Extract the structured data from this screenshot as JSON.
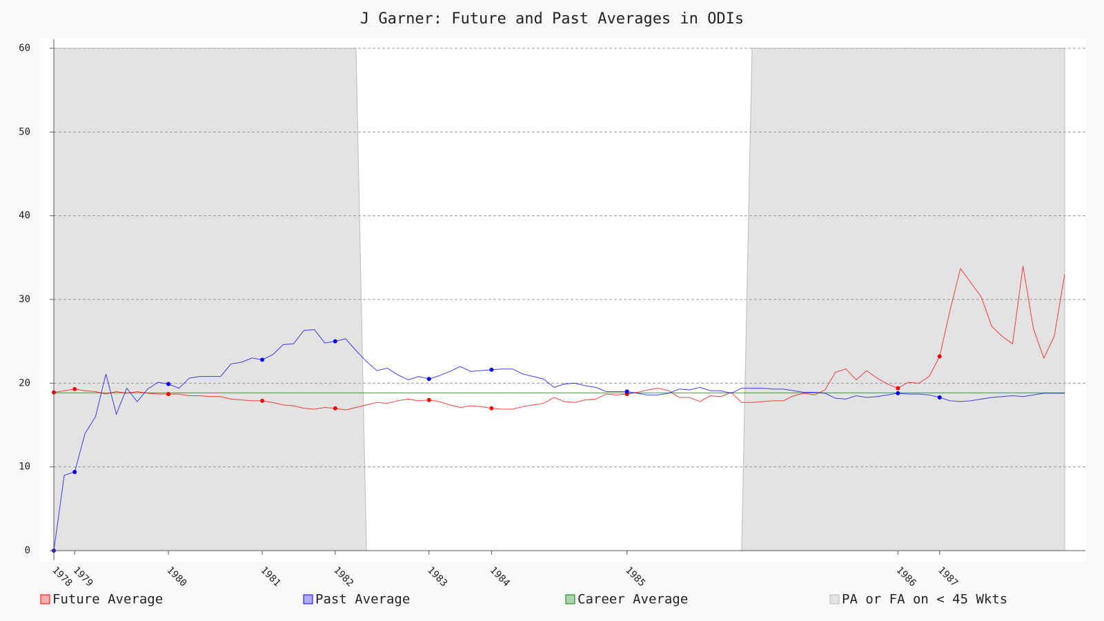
{
  "chart_data": {
    "type": "line",
    "title": "J Garner: Future and Past Averages in ODIs",
    "x": [
      0,
      1,
      2,
      3,
      4,
      5,
      6,
      7,
      8,
      9,
      10,
      11,
      12,
      13,
      14,
      15,
      16,
      17,
      18,
      19,
      20,
      21,
      22,
      23,
      24,
      25,
      26,
      27,
      28,
      29,
      30,
      31,
      32,
      33,
      34,
      35,
      36,
      37,
      38,
      39,
      40,
      41,
      42,
      43,
      44,
      45,
      46,
      47,
      48,
      49,
      50,
      51,
      52,
      53,
      54,
      55,
      56,
      57,
      58,
      59,
      60,
      61,
      62,
      63,
      64,
      65,
      66,
      67,
      68,
      69,
      70,
      71,
      72,
      73,
      74,
      75,
      76,
      77,
      78,
      79,
      80,
      81,
      82,
      83,
      84,
      85,
      86,
      87,
      88,
      89,
      90,
      91,
      92,
      93,
      94,
      95,
      96,
      97
    ],
    "xlim": [
      0,
      97
    ],
    "xticks": [
      {
        "value": 0,
        "label": "1978"
      },
      {
        "value": 2,
        "label": "1979"
      },
      {
        "value": 11,
        "label": "1980"
      },
      {
        "value": 20,
        "label": "1981"
      },
      {
        "value": 27,
        "label": "1982"
      },
      {
        "value": 36,
        "label": "1983"
      },
      {
        "value": 42,
        "label": "1984"
      },
      {
        "value": 55,
        "label": "1985"
      },
      {
        "value": 81,
        "label": "1986"
      },
      {
        "value": 85,
        "label": "1987"
      }
    ],
    "ylim": [
      0,
      60
    ],
    "yticks": [
      0,
      10,
      20,
      30,
      40,
      50,
      60
    ],
    "grid": true,
    "series": [
      {
        "name": "PA or FA on < 45 Wkts",
        "type": "area",
        "color": "#bbbbbb",
        "values": [
          60,
          60,
          60,
          60,
          60,
          60,
          60,
          60,
          60,
          60,
          60,
          60,
          60,
          60,
          60,
          60,
          60,
          60,
          60,
          60,
          60,
          60,
          60,
          60,
          60,
          60,
          60,
          60,
          60,
          60,
          0,
          0,
          0,
          0,
          0,
          0,
          0,
          0,
          0,
          0,
          0,
          0,
          0,
          0,
          0,
          0,
          0,
          0,
          0,
          0,
          0,
          0,
          0,
          0,
          0,
          0,
          0,
          0,
          0,
          0,
          0,
          0,
          0,
          0,
          0,
          0,
          0,
          60,
          60,
          60,
          60,
          60,
          60,
          60,
          60,
          60,
          60,
          60,
          60,
          60,
          60,
          60,
          60,
          60,
          60,
          60,
          60,
          60,
          60,
          60,
          60,
          60,
          60,
          60,
          60,
          60,
          60,
          60
        ]
      },
      {
        "name": "Career Average",
        "type": "line",
        "color": "#008000",
        "values": [
          18.84,
          18.84,
          18.84,
          18.84,
          18.84,
          18.84,
          18.84,
          18.84,
          18.84,
          18.84,
          18.84,
          18.84,
          18.84,
          18.84,
          18.84,
          18.84,
          18.84,
          18.84,
          18.84,
          18.84,
          18.84,
          18.84,
          18.84,
          18.84,
          18.84,
          18.84,
          18.84,
          18.84,
          18.84,
          18.84,
          18.84,
          18.84,
          18.84,
          18.84,
          18.84,
          18.84,
          18.84,
          18.84,
          18.84,
          18.84,
          18.84,
          18.84,
          18.84,
          18.84,
          18.84,
          18.84,
          18.84,
          18.84,
          18.84,
          18.84,
          18.84,
          18.84,
          18.84,
          18.84,
          18.84,
          18.84,
          18.84,
          18.84,
          18.84,
          18.84,
          18.84,
          18.84,
          18.84,
          18.84,
          18.84,
          18.84,
          18.84,
          18.84,
          18.84,
          18.84,
          18.84,
          18.84,
          18.84,
          18.84,
          18.84,
          18.84,
          18.84,
          18.84,
          18.84,
          18.84,
          18.84,
          18.84,
          18.84,
          18.84,
          18.84,
          18.84,
          18.84,
          18.84,
          18.84,
          18.84,
          18.84,
          18.84,
          18.84,
          18.84,
          18.84,
          18.84,
          18.84,
          18.84
        ]
      },
      {
        "name": "Future Average",
        "type": "line",
        "color": "#ff0000",
        "values": [
          18.9,
          19.1,
          19.3,
          19.1,
          19.0,
          18.7,
          19.0,
          18.8,
          19.0,
          18.8,
          18.7,
          18.7,
          18.7,
          18.5,
          18.5,
          18.4,
          18.4,
          18.1,
          18.0,
          17.9,
          17.9,
          17.7,
          17.4,
          17.3,
          17.0,
          16.9,
          17.1,
          17.0,
          16.8,
          17.1,
          17.4,
          17.7,
          17.6,
          17.9,
          18.1,
          17.9,
          18.0,
          17.8,
          17.4,
          17.1,
          17.3,
          17.2,
          17.0,
          16.9,
          16.9,
          17.2,
          17.4,
          17.6,
          18.3,
          17.8,
          17.7,
          18.0,
          18.1,
          18.7,
          18.6,
          18.7,
          18.9,
          19.2,
          19.4,
          19.1,
          18.3,
          18.3,
          17.8,
          18.5,
          18.4,
          18.9,
          17.7,
          17.7,
          17.8,
          17.9,
          17.9,
          18.5,
          18.8,
          18.6,
          19.2,
          21.3,
          21.7,
          20.4,
          21.5,
          20.6,
          19.9,
          19.4,
          20.1,
          20.0,
          20.8,
          23.2,
          28.7,
          33.7,
          32.0,
          30.3,
          26.8,
          25.6,
          24.7,
          34.0,
          26.5,
          23.0,
          25.6,
          33.0
        ]
      },
      {
        "name": "Past Average",
        "type": "line",
        "color": "#0000ff",
        "values": [
          0,
          9.0,
          9.4,
          14.0,
          16.0,
          21.1,
          16.3,
          19.4,
          17.8,
          19.3,
          20.1,
          19.9,
          19.4,
          20.6,
          20.8,
          20.8,
          20.8,
          22.3,
          22.5,
          23.0,
          22.8,
          23.4,
          24.6,
          24.7,
          26.3,
          26.4,
          24.8,
          25.0,
          25.3,
          23.9,
          22.6,
          21.5,
          21.8,
          21.0,
          20.4,
          20.8,
          20.5,
          20.9,
          21.4,
          22.0,
          21.4,
          21.5,
          21.6,
          21.7,
          21.7,
          21.1,
          20.8,
          20.5,
          19.5,
          19.9,
          20.0,
          19.7,
          19.5,
          19.0,
          19.0,
          19.0,
          18.8,
          18.6,
          18.6,
          18.8,
          19.3,
          19.2,
          19.5,
          19.1,
          19.1,
          18.8,
          19.4,
          19.4,
          19.4,
          19.3,
          19.3,
          19.1,
          18.9,
          18.9,
          18.8,
          18.2,
          18.1,
          18.5,
          18.3,
          18.4,
          18.6,
          18.8,
          18.7,
          18.7,
          18.6,
          18.3,
          17.9,
          17.8,
          17.9,
          18.1,
          18.3,
          18.4,
          18.5,
          18.4,
          18.6,
          18.8,
          18.8,
          18.8
        ]
      }
    ],
    "legend_order": [
      "Future Average",
      "Past Average",
      "Career Average",
      "PA or FA on < 45 Wkts"
    ]
  }
}
